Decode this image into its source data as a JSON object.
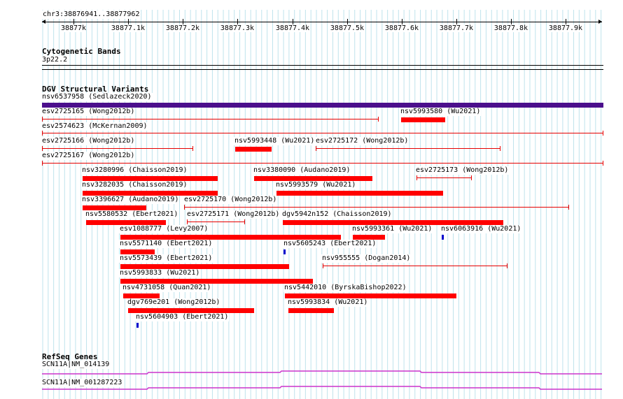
{
  "ruler": {
    "position": "chr3:38876941..38877962",
    "ticks": [
      "38877k",
      "38877.1k",
      "38877.2k",
      "38877.3k",
      "38877.4k",
      "38877.5k",
      "38877.6k",
      "38877.7k",
      "38877.8k",
      "38877.9k"
    ]
  },
  "cyto": {
    "title": "Cytogenetic Bands",
    "band": "3p22.2"
  },
  "dgv": {
    "title": "DGV Structural Variants",
    "variants": [
      {
        "label": "nsv6537958 (Sedlazeck2020)",
        "style": "bar",
        "color": "#4b0f8c"
      },
      {
        "label": "esv2725165 (Wong2012b)",
        "style": "thin",
        "color": "#e60000"
      },
      {
        "label": "nsv5993580 (Wu2021)",
        "style": "bar",
        "color": "#ff0000"
      },
      {
        "label": "esv2574623 (McKernan2009)",
        "style": "thin",
        "color": "#e60000"
      },
      {
        "label": "esv2725166 (Wong2012b)",
        "style": "thin",
        "color": "#e60000"
      },
      {
        "label": "nsv5993448 (Wu2021)",
        "style": "bar",
        "color": "#ff0000"
      },
      {
        "label": "esv2725172 (Wong2012b)",
        "style": "thin",
        "color": "#e60000"
      },
      {
        "label": "esv2725167 (Wong2012b)",
        "style": "thin",
        "color": "#e60000"
      },
      {
        "label": "nsv3280996 (Chaisson2019)",
        "style": "bar",
        "color": "#ff0000"
      },
      {
        "label": "nsv3380090 (Audano2019)",
        "style": "bar",
        "color": "#ff0000"
      },
      {
        "label": "esv2725173 (Wong2012b)",
        "style": "thin",
        "color": "#e60000"
      },
      {
        "label": "nsv3282035 (Chaisson2019)",
        "style": "bar",
        "color": "#ff0000"
      },
      {
        "label": "nsv5993579 (Wu2021)",
        "style": "bar",
        "color": "#ff0000"
      },
      {
        "label": "nsv3396627 (Audano2019)",
        "style": "bar",
        "color": "#ff0000"
      },
      {
        "label": "esv2725170 (Wong2012b)",
        "style": "thin",
        "color": "#e60000"
      },
      {
        "label": "nsv5580532 (Ebert2021)",
        "style": "bar",
        "color": "#ff0000"
      },
      {
        "label": "esv2725171 (Wong2012b)",
        "style": "thin",
        "color": "#e60000"
      },
      {
        "label": "dgv5942n152 (Chaisson2019)",
        "style": "bar",
        "color": "#ff0000"
      },
      {
        "label": "esv1088777 (Levy2007)",
        "style": "bar",
        "color": "#ff0000"
      },
      {
        "label": "nsv5993361 (Wu2021)",
        "style": "bar",
        "color": "#ff0000"
      },
      {
        "label": "nsv6063916 (Wu2021)",
        "style": "bar",
        "color": "#0000cc"
      },
      {
        "label": "nsv5571140 (Ebert2021)",
        "style": "bar",
        "color": "#ff0000"
      },
      {
        "label": "nsv5605243 (Ebert2021)",
        "style": "bar",
        "color": "#0000cc"
      },
      {
        "label": "nsv5573439 (Ebert2021)",
        "style": "bar",
        "color": "#ff0000"
      },
      {
        "label": "nsv955555 (Dogan2014)",
        "style": "thin",
        "color": "#e60000"
      },
      {
        "label": "nsv5993833 (Wu2021)",
        "style": "bar",
        "color": "#ff0000"
      },
      {
        "label": "nsv4731058 (Quan2021)",
        "style": "bar",
        "color": "#ff0000"
      },
      {
        "label": "nsv5442010 (ByrskaBishop2022)",
        "style": "bar",
        "color": "#ff0000"
      },
      {
        "label": "dgv769e201 (Wong2012b)",
        "style": "bar",
        "color": "#ff0000"
      },
      {
        "label": "nsv5993834 (Wu2021)",
        "style": "bar",
        "color": "#ff0000"
      },
      {
        "label": "nsv5604903 (Ebert2021)",
        "style": "bar",
        "color": "#0000cc"
      }
    ]
  },
  "refseq": {
    "title": "RefSeq Genes",
    "genes": [
      {
        "label": "SCN11A|NM_014139",
        "color": "#cc33cc"
      },
      {
        "label": "SCN11A|NM_001287223",
        "color": "#cc33cc"
      }
    ]
  }
}
